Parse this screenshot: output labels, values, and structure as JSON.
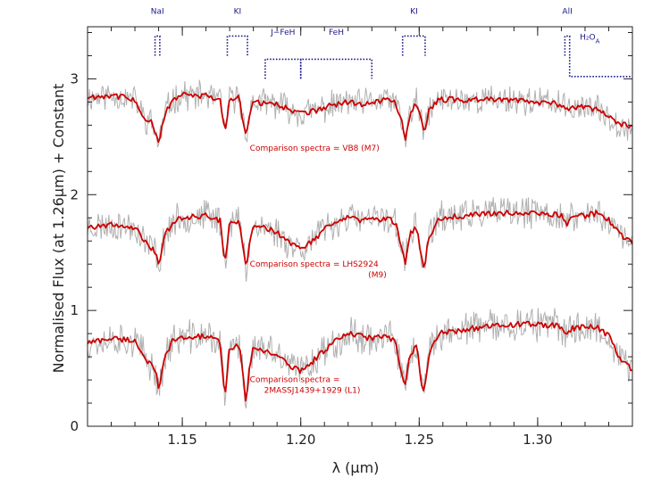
{
  "chart_data": {
    "type": "line",
    "xlabel": "λ (μm)",
    "ylabel": "Normalised Flux (at 1.26μm) + Constant",
    "xlim": [
      1.11,
      1.34
    ],
    "ylim": [
      0,
      3.45
    ],
    "x_ticks": [
      {
        "value": 1.15,
        "label": "1.15"
      },
      {
        "value": 1.2,
        "label": "1.20"
      },
      {
        "value": 1.25,
        "label": "1.25"
      },
      {
        "value": 1.3,
        "label": "1.30"
      }
    ],
    "y_ticks": [
      {
        "value": 0,
        "label": "0"
      },
      {
        "value": 1,
        "label": "1"
      },
      {
        "value": 2,
        "label": "2"
      },
      {
        "value": 3,
        "label": "3"
      }
    ],
    "colors": {
      "observed": "#b0b0b0",
      "comparison": "#cc0000",
      "features": "#1a1a8c",
      "axis": "#222222"
    },
    "series": [
      {
        "label_lines": [
          "Comparison spectra = VB8 (M7)"
        ],
        "offset": 2.0,
        "sigma": 0.11,
        "noise_seed": 11,
        "comparison": [
          [
            1.11,
            2.84
          ],
          [
            1.12,
            2.86
          ],
          [
            1.13,
            2.82
          ],
          [
            1.134,
            2.66
          ],
          [
            1.137,
            2.62
          ],
          [
            1.139,
            2.52
          ],
          [
            1.14,
            2.42
          ],
          [
            1.141,
            2.55
          ],
          [
            1.143,
            2.72
          ],
          [
            1.146,
            2.82
          ],
          [
            1.15,
            2.86
          ],
          [
            1.16,
            2.85
          ],
          [
            1.166,
            2.81
          ],
          [
            1.168,
            2.56
          ],
          [
            1.17,
            2.82
          ],
          [
            1.174,
            2.84
          ],
          [
            1.176,
            2.6
          ],
          [
            1.177,
            2.53
          ],
          [
            1.178,
            2.66
          ],
          [
            1.18,
            2.8
          ],
          [
            1.19,
            2.78
          ],
          [
            1.195,
            2.74
          ],
          [
            1.2,
            2.7
          ],
          [
            1.205,
            2.72
          ],
          [
            1.21,
            2.75
          ],
          [
            1.215,
            2.78
          ],
          [
            1.22,
            2.8
          ],
          [
            1.225,
            2.78
          ],
          [
            1.23,
            2.8
          ],
          [
            1.236,
            2.82
          ],
          [
            1.24,
            2.8
          ],
          [
            1.243,
            2.6
          ],
          [
            1.244,
            2.44
          ],
          [
            1.246,
            2.7
          ],
          [
            1.249,
            2.8
          ],
          [
            1.251,
            2.62
          ],
          [
            1.252,
            2.52
          ],
          [
            1.254,
            2.72
          ],
          [
            1.258,
            2.82
          ],
          [
            1.27,
            2.82
          ],
          [
            1.28,
            2.82
          ],
          [
            1.29,
            2.82
          ],
          [
            1.3,
            2.8
          ],
          [
            1.31,
            2.78
          ],
          [
            1.312,
            2.72
          ],
          [
            1.314,
            2.76
          ],
          [
            1.32,
            2.76
          ],
          [
            1.325,
            2.73
          ],
          [
            1.33,
            2.68
          ],
          [
            1.335,
            2.6
          ],
          [
            1.34,
            2.6
          ]
        ]
      },
      {
        "label_lines": [
          "Comparison spectra = LHS2924",
          "(M9)"
        ],
        "offset": 1.0,
        "sigma": 0.12,
        "noise_seed": 23,
        "comparison": [
          [
            1.11,
            1.72
          ],
          [
            1.12,
            1.74
          ],
          [
            1.13,
            1.72
          ],
          [
            1.134,
            1.6
          ],
          [
            1.137,
            1.54
          ],
          [
            1.139,
            1.5
          ],
          [
            1.14,
            1.38
          ],
          [
            1.141,
            1.5
          ],
          [
            1.143,
            1.66
          ],
          [
            1.146,
            1.76
          ],
          [
            1.15,
            1.8
          ],
          [
            1.16,
            1.82
          ],
          [
            1.166,
            1.78
          ],
          [
            1.168,
            1.4
          ],
          [
            1.17,
            1.76
          ],
          [
            1.174,
            1.78
          ],
          [
            1.176,
            1.5
          ],
          [
            1.177,
            1.33
          ],
          [
            1.178,
            1.55
          ],
          [
            1.18,
            1.74
          ],
          [
            1.19,
            1.68
          ],
          [
            1.195,
            1.58
          ],
          [
            1.2,
            1.54
          ],
          [
            1.205,
            1.6
          ],
          [
            1.21,
            1.7
          ],
          [
            1.215,
            1.76
          ],
          [
            1.22,
            1.8
          ],
          [
            1.225,
            1.78
          ],
          [
            1.23,
            1.78
          ],
          [
            1.236,
            1.8
          ],
          [
            1.24,
            1.76
          ],
          [
            1.243,
            1.5
          ],
          [
            1.244,
            1.4
          ],
          [
            1.246,
            1.66
          ],
          [
            1.249,
            1.72
          ],
          [
            1.251,
            1.45
          ],
          [
            1.252,
            1.36
          ],
          [
            1.254,
            1.62
          ],
          [
            1.258,
            1.8
          ],
          [
            1.27,
            1.82
          ],
          [
            1.28,
            1.84
          ],
          [
            1.29,
            1.84
          ],
          [
            1.3,
            1.84
          ],
          [
            1.31,
            1.82
          ],
          [
            1.312,
            1.74
          ],
          [
            1.314,
            1.8
          ],
          [
            1.32,
            1.82
          ],
          [
            1.325,
            1.84
          ],
          [
            1.33,
            1.78
          ],
          [
            1.335,
            1.65
          ],
          [
            1.34,
            1.58
          ]
        ]
      },
      {
        "label_lines": [
          "Comparison spectra =",
          "2MASSJ1439+1929 (L1)"
        ],
        "offset": 0.0,
        "sigma": 0.13,
        "noise_seed": 37,
        "comparison": [
          [
            1.11,
            0.72
          ],
          [
            1.12,
            0.76
          ],
          [
            1.13,
            0.74
          ],
          [
            1.134,
            0.6
          ],
          [
            1.137,
            0.52
          ],
          [
            1.139,
            0.45
          ],
          [
            1.14,
            0.3
          ],
          [
            1.141,
            0.42
          ],
          [
            1.143,
            0.62
          ],
          [
            1.146,
            0.74
          ],
          [
            1.15,
            0.76
          ],
          [
            1.16,
            0.78
          ],
          [
            1.166,
            0.72
          ],
          [
            1.168,
            0.26
          ],
          [
            1.17,
            0.68
          ],
          [
            1.174,
            0.7
          ],
          [
            1.176,
            0.4
          ],
          [
            1.177,
            0.16
          ],
          [
            1.178,
            0.45
          ],
          [
            1.18,
            0.68
          ],
          [
            1.19,
            0.62
          ],
          [
            1.195,
            0.52
          ],
          [
            1.2,
            0.48
          ],
          [
            1.205,
            0.56
          ],
          [
            1.21,
            0.66
          ],
          [
            1.215,
            0.74
          ],
          [
            1.22,
            0.8
          ],
          [
            1.225,
            0.78
          ],
          [
            1.23,
            0.76
          ],
          [
            1.236,
            0.78
          ],
          [
            1.24,
            0.72
          ],
          [
            1.243,
            0.4
          ],
          [
            1.244,
            0.34
          ],
          [
            1.246,
            0.62
          ],
          [
            1.249,
            0.68
          ],
          [
            1.251,
            0.36
          ],
          [
            1.252,
            0.28
          ],
          [
            1.254,
            0.6
          ],
          [
            1.258,
            0.8
          ],
          [
            1.27,
            0.84
          ],
          [
            1.28,
            0.86
          ],
          [
            1.29,
            0.88
          ],
          [
            1.3,
            0.88
          ],
          [
            1.31,
            0.86
          ],
          [
            1.312,
            0.78
          ],
          [
            1.314,
            0.84
          ],
          [
            1.32,
            0.86
          ],
          [
            1.325,
            0.86
          ],
          [
            1.33,
            0.78
          ],
          [
            1.335,
            0.58
          ],
          [
            1.34,
            0.48
          ]
        ]
      }
    ],
    "features": [
      {
        "label": "NaI",
        "x": 1.1385,
        "x2": 1.1405,
        "y": 3.2,
        "label_x": 1.1395,
        "label_y": 3.56
      },
      {
        "label": "KI",
        "x": 1.169,
        "x2": 1.1775,
        "y": 3.2,
        "label_x": 1.1733,
        "label_y": 3.56
      },
      {
        "label": "J−FeH",
        "x": 1.185,
        "x2": 1.2,
        "y": 3.0,
        "label_x": 1.1925,
        "label_y": 3.38
      },
      {
        "label": "FeH",
        "x": 1.2,
        "x2": 1.23,
        "y": 3.0,
        "label_x": 1.215,
        "label_y": 3.38
      },
      {
        "label": "KI",
        "x": 1.243,
        "x2": 1.2525,
        "y": 3.2,
        "label_x": 1.2478,
        "label_y": 3.56
      },
      {
        "label": "AlI",
        "x": 1.3115,
        "x2": 1.3135,
        "y": 3.2,
        "label_x": 1.3125,
        "label_y": 3.56
      },
      {
        "label": "H₂O",
        "sub": "A",
        "x": 1.3135,
        "x2": 1.34,
        "y": 3.02,
        "label_x": 1.322,
        "label_y": 3.34
      }
    ]
  }
}
